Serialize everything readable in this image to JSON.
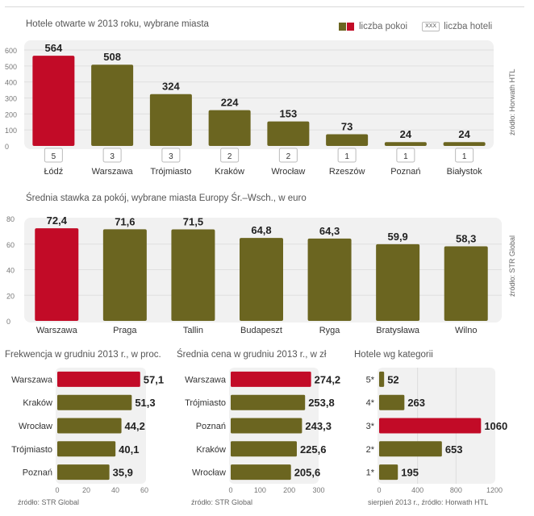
{
  "colors": {
    "highlight": "#c20b27",
    "bar": "#6b6520",
    "panel": "#f1f1f1",
    "grid": "#e0e0e0"
  },
  "legend": {
    "rooms_label": "liczba pokoi",
    "hotels_box": "XXX",
    "hotels_label": "liczba hoteli"
  },
  "chart_data": [
    {
      "type": "bar",
      "title": "Hotele otwarte w 2013 roku, wybrane miasta",
      "categories": [
        "Łódź",
        "Warszawa",
        "Trójmiasto",
        "Kraków",
        "Wrocław",
        "Rzeszów",
        "Poznań",
        "Białystok"
      ],
      "series": [
        {
          "name": "liczba pokoi",
          "values": [
            564,
            508,
            324,
            224,
            153,
            73,
            24,
            24
          ]
        },
        {
          "name": "liczba hoteli",
          "values": [
            5,
            3,
            3,
            2,
            2,
            1,
            1,
            1
          ]
        }
      ],
      "highlight": [
        0
      ],
      "ylim": [
        0,
        600
      ],
      "yticks": [
        "0",
        "100",
        "200",
        "300",
        "400",
        "500",
        "600"
      ],
      "source": "źródło: Horwath HTL"
    },
    {
      "type": "bar",
      "title": "Średnia stawka za pokój, wybrane miasta Europy Śr.–Wsch., w euro",
      "categories": [
        "Warszawa",
        "Praga",
        "Tallin",
        "Budapeszt",
        "Ryga",
        "Bratysława",
        "Wilno"
      ],
      "values": [
        72.4,
        71.6,
        71.5,
        64.8,
        64.3,
        59.9,
        58.3
      ],
      "value_labels": [
        "72,4",
        "71,6",
        "71,5",
        "64,8",
        "64,3",
        "59,9",
        "58,3"
      ],
      "highlight": [
        0
      ],
      "ylim": [
        0,
        80
      ],
      "yticks": [
        "0",
        "20",
        "40",
        "60",
        "80"
      ],
      "source": "źródło: STR Global"
    },
    {
      "type": "bar",
      "orientation": "horizontal",
      "title": "Frekwencja w grudniu 2013 r., w proc.",
      "categories": [
        "Warszawa",
        "Kraków",
        "Wrocław",
        "Trójmiasto",
        "Poznań"
      ],
      "values": [
        57.1,
        51.3,
        44.2,
        40.1,
        35.9
      ],
      "value_labels": [
        "57,1",
        "51,3",
        "44,2",
        "40,1",
        "35,9"
      ],
      "highlight": [
        0
      ],
      "xlim": [
        0,
        60
      ],
      "xticks": [
        "0",
        "20",
        "40",
        "60"
      ],
      "source": "źródło: STR Global"
    },
    {
      "type": "bar",
      "orientation": "horizontal",
      "title": "Średnia cena w grudniu 2013 r., w zł",
      "categories": [
        "Warszawa",
        "Trójmiasto",
        "Poznań",
        "Kraków",
        "Wrocław"
      ],
      "values": [
        274.2,
        253.8,
        243.3,
        225.6,
        205.6
      ],
      "value_labels": [
        "274,2",
        "253,8",
        "243,3",
        "225,6",
        "205,6"
      ],
      "highlight": [
        0
      ],
      "xlim": [
        0,
        300
      ],
      "xticks": [
        "0",
        "100",
        "200",
        "300"
      ],
      "source": "źródło: STR Global"
    },
    {
      "type": "bar",
      "orientation": "horizontal",
      "title": "Hotele wg kategorii",
      "categories": [
        "5*",
        "4*",
        "3*",
        "2*",
        "1*"
      ],
      "values": [
        52,
        263,
        1060,
        653,
        195
      ],
      "value_labels": [
        "52",
        "263",
        "1060",
        "653",
        "195"
      ],
      "highlight": [
        2
      ],
      "xlim": [
        0,
        1200
      ],
      "xticks": [
        "0",
        "400",
        "800",
        "1200"
      ],
      "source": "sierpień 2013 r., źródło: Horwath HTL"
    }
  ]
}
